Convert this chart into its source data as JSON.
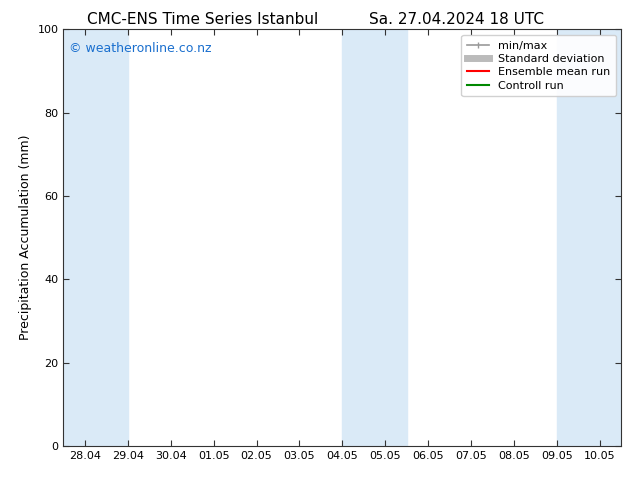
{
  "title_left": "CMC-ENS Time Series Istanbul",
  "title_right": "Sa. 27.04.2024 18 UTC",
  "ylabel": "Precipitation Accumulation (mm)",
  "ylim": [
    0,
    100
  ],
  "yticks": [
    0,
    20,
    40,
    60,
    80,
    100
  ],
  "x_tick_labels": [
    "28.04",
    "29.04",
    "30.04",
    "01.05",
    "02.05",
    "03.05",
    "04.05",
    "05.05",
    "06.05",
    "07.05",
    "08.05",
    "09.05",
    "10.05"
  ],
  "x_tick_positions": [
    0,
    1,
    2,
    3,
    4,
    5,
    6,
    7,
    8,
    9,
    10,
    11,
    12
  ],
  "xlim": [
    -0.5,
    12.5
  ],
  "shaded_bands": [
    {
      "x_start": -0.5,
      "x_end": 1.0,
      "color": "#daeaf7"
    },
    {
      "x_start": 6.0,
      "x_end": 7.5,
      "color": "#daeaf7"
    },
    {
      "x_start": 11.0,
      "x_end": 12.5,
      "color": "#daeaf7"
    }
  ],
  "background_color": "#ffffff",
  "plot_bg_color": "#ffffff",
  "tick_color": "#000000",
  "watermark_text": "© weatheronline.co.nz",
  "watermark_color": "#1a6fce",
  "legend_items": [
    {
      "label": "min/max",
      "color": "#999999",
      "lw": 1.2,
      "style": "solid",
      "marker": true
    },
    {
      "label": "Standard deviation",
      "color": "#bbbbbb",
      "lw": 5,
      "style": "solid",
      "marker": false
    },
    {
      "label": "Ensemble mean run",
      "color": "#ff0000",
      "lw": 1.5,
      "style": "solid",
      "marker": false
    },
    {
      "label": "Controll run",
      "color": "#008800",
      "lw": 1.5,
      "style": "solid",
      "marker": false
    }
  ],
  "title_fontsize": 11,
  "axis_label_fontsize": 9,
  "tick_fontsize": 8,
  "watermark_fontsize": 9,
  "legend_fontsize": 8
}
